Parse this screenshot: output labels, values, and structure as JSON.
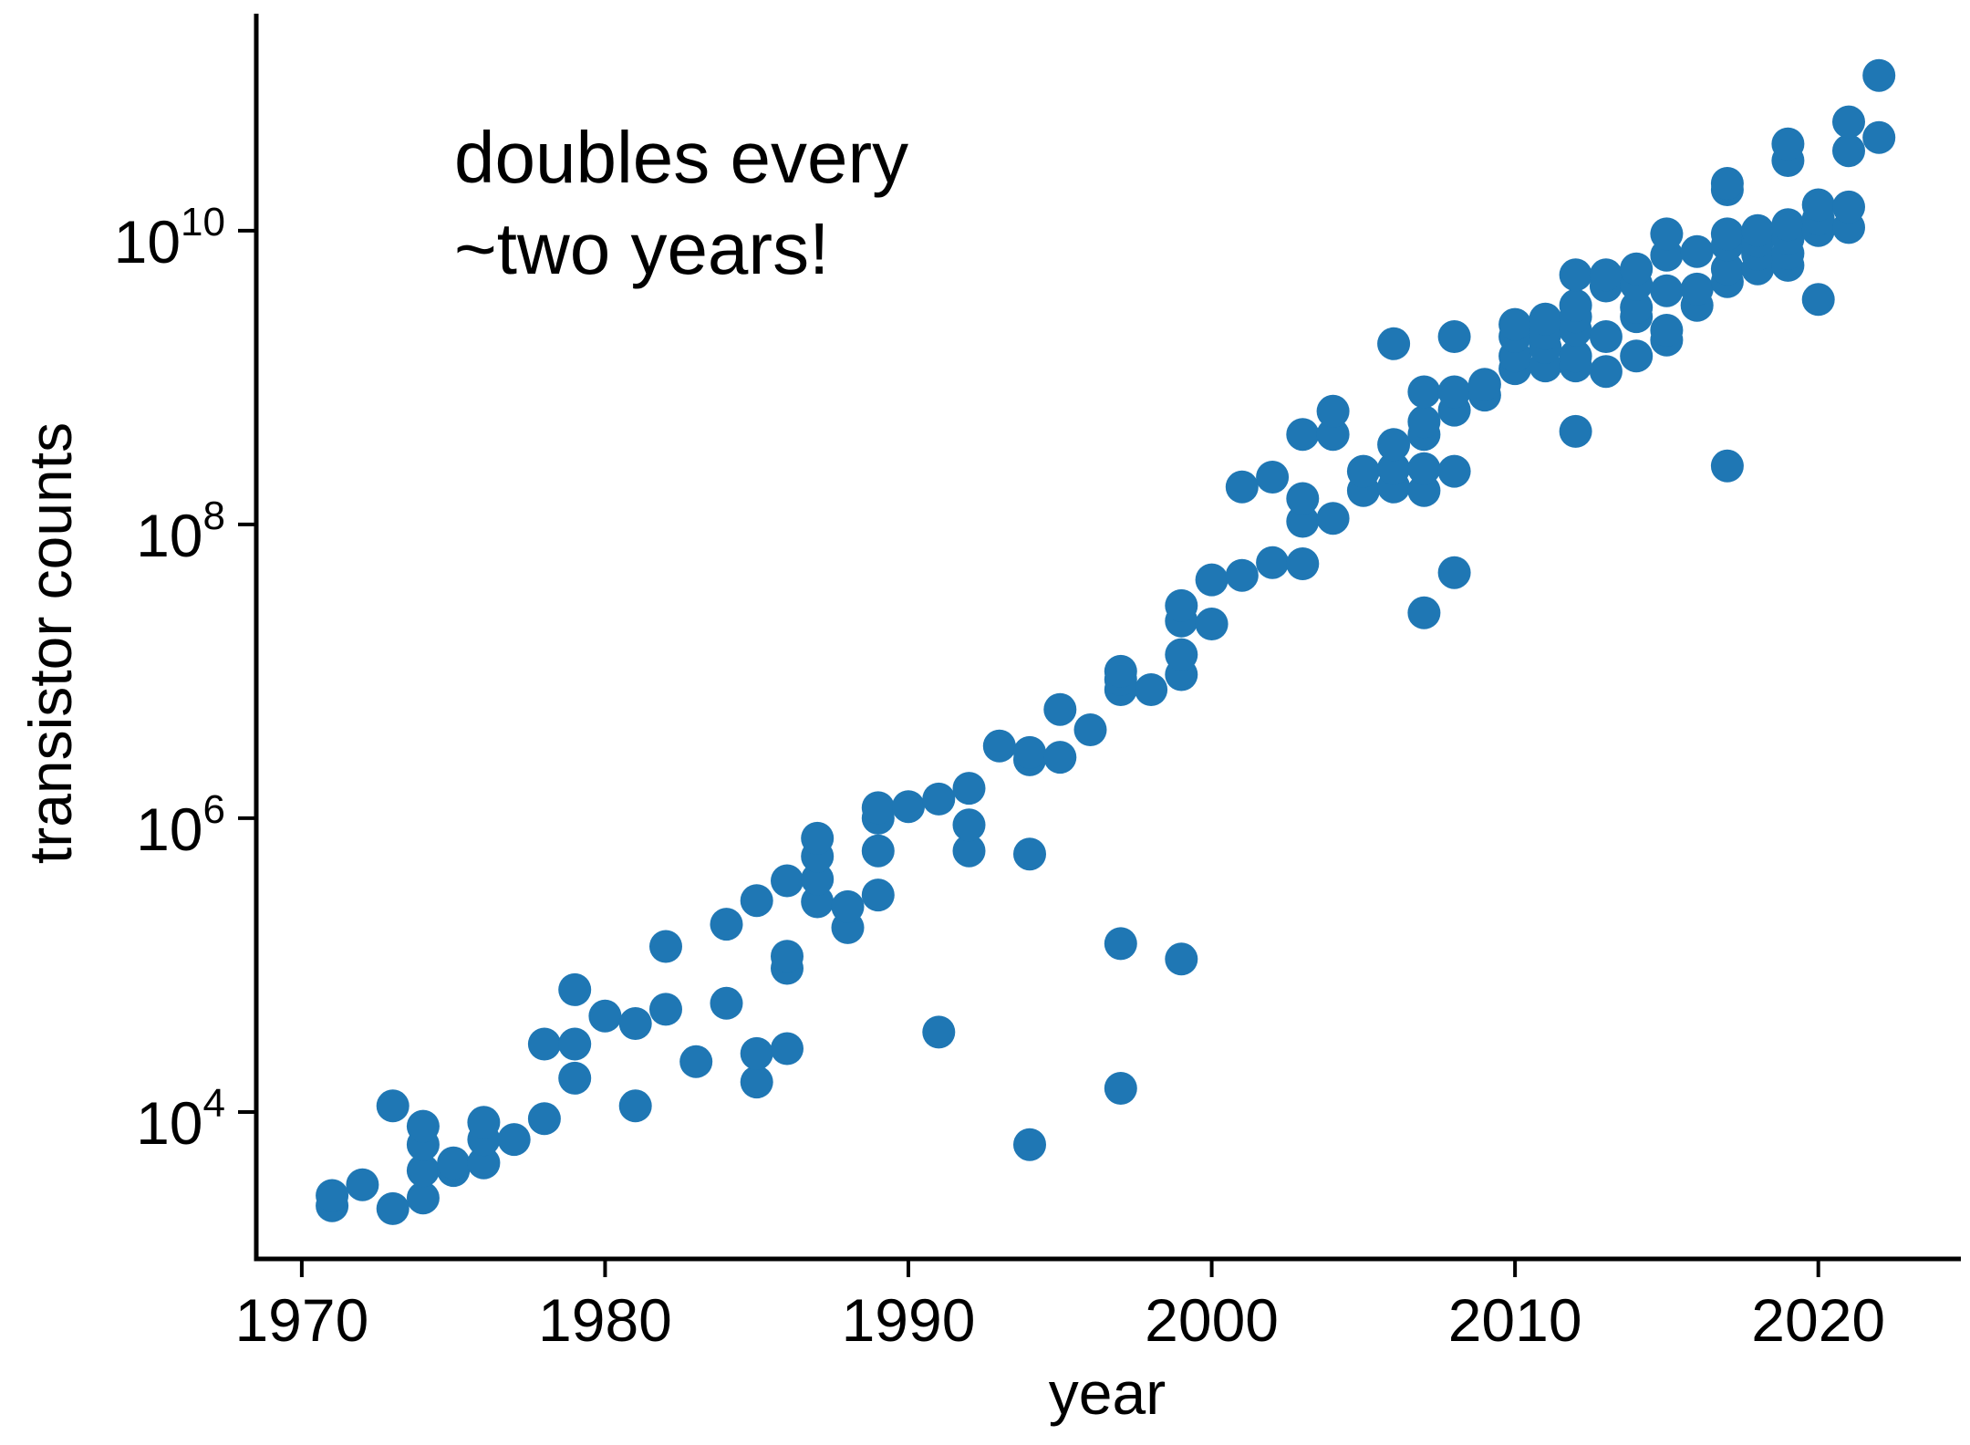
{
  "chart_data": {
    "type": "scatter",
    "title": "",
    "xlabel": "year",
    "ylabel": "transistor counts",
    "yscale": "log",
    "xlim": [
      1968.5,
      2024.7
    ],
    "ylim": [
      1000,
      300000000000
    ],
    "xticks": [
      1970,
      1980,
      1990,
      2000,
      2010,
      2020
    ],
    "xtick_labels": [
      "1970",
      "1980",
      "1990",
      "2000",
      "2010",
      "2020"
    ],
    "yticks": [
      10000,
      1000000,
      100000000,
      10000000000
    ],
    "ytick_labels": [
      {
        "base": "10",
        "exp": "4"
      },
      {
        "base": "10",
        "exp": "6"
      },
      {
        "base": "10",
        "exp": "8"
      },
      {
        "base": "10",
        "exp": "10"
      }
    ],
    "grid": false,
    "legend": "none",
    "point_color": "#1f77b4",
    "annotation": {
      "lines": [
        "doubles every",
        "~two years!"
      ],
      "placement": "top-left"
    },
    "series": [
      {
        "points": [
          [
            1971,
            2300
          ],
          [
            1971,
            2700
          ],
          [
            1972,
            3200
          ],
          [
            1973,
            2200
          ],
          [
            1973,
            11000
          ],
          [
            1974,
            2600
          ],
          [
            1974,
            4000
          ],
          [
            1974,
            6000
          ],
          [
            1974,
            8000
          ],
          [
            1975,
            4000
          ],
          [
            1975,
            4500
          ],
          [
            1976,
            4500
          ],
          [
            1976,
            6500
          ],
          [
            1976,
            8500
          ],
          [
            1977,
            6500
          ],
          [
            1978,
            9000
          ],
          [
            1978,
            29000
          ],
          [
            1979,
            17000
          ],
          [
            1979,
            29000
          ],
          [
            1979,
            68000
          ],
          [
            1980,
            45000
          ],
          [
            1981,
            11000
          ],
          [
            1981,
            40000
          ],
          [
            1982,
            50000
          ],
          [
            1982,
            134000
          ],
          [
            1983,
            22000
          ],
          [
            1984,
            55000
          ],
          [
            1984,
            190000
          ],
          [
            1985,
            16000
          ],
          [
            1985,
            25000
          ],
          [
            1985,
            275000
          ],
          [
            1986,
            27000
          ],
          [
            1986,
            95000
          ],
          [
            1986,
            115000
          ],
          [
            1986,
            375000
          ],
          [
            1987,
            270000
          ],
          [
            1987,
            385000
          ],
          [
            1987,
            550000
          ],
          [
            1987,
            730000
          ],
          [
            1988,
            180000
          ],
          [
            1988,
            250000
          ],
          [
            1989,
            300000
          ],
          [
            1989,
            600000
          ],
          [
            1989,
            1000000
          ],
          [
            1989,
            1180000
          ],
          [
            1990,
            1200000
          ],
          [
            1991,
            35000
          ],
          [
            1991,
            1350000
          ],
          [
            1992,
            600000
          ],
          [
            1992,
            900000
          ],
          [
            1992,
            1600000
          ],
          [
            1993,
            3100000
          ],
          [
            1994,
            6000
          ],
          [
            1994,
            570000
          ],
          [
            1994,
            2500000
          ],
          [
            1994,
            2800000
          ],
          [
            1995,
            2600000
          ],
          [
            1995,
            5500000
          ],
          [
            1996,
            4000000
          ],
          [
            1997,
            14500
          ],
          [
            1997,
            140000
          ],
          [
            1997,
            7500000
          ],
          [
            1997,
            8800000
          ],
          [
            1997,
            10000000
          ],
          [
            1998,
            7500000
          ],
          [
            1999,
            110000
          ],
          [
            1999,
            9500000
          ],
          [
            1999,
            13000000
          ],
          [
            1999,
            22000000
          ],
          [
            1999,
            28000000
          ],
          [
            2000,
            21000000
          ],
          [
            2000,
            42000000
          ],
          [
            2001,
            45000000
          ],
          [
            2001,
            180000000
          ],
          [
            2002,
            55000000
          ],
          [
            2002,
            210000000
          ],
          [
            2003,
            54000000
          ],
          [
            2003,
            105000000
          ],
          [
            2003,
            150000000
          ],
          [
            2003,
            410000000
          ],
          [
            2004,
            110000000
          ],
          [
            2004,
            410000000
          ],
          [
            2004,
            590000000
          ],
          [
            2005,
            170000000
          ],
          [
            2005,
            230000000
          ],
          [
            2006,
            180000000
          ],
          [
            2006,
            240000000
          ],
          [
            2006,
            350000000
          ],
          [
            2006,
            1700000000
          ],
          [
            2007,
            25000000
          ],
          [
            2007,
            170000000
          ],
          [
            2007,
            240000000
          ],
          [
            2007,
            410000000
          ],
          [
            2007,
            500000000
          ],
          [
            2007,
            800000000
          ],
          [
            2008,
            47000000
          ],
          [
            2008,
            230000000
          ],
          [
            2008,
            600000000
          ],
          [
            2008,
            800000000
          ],
          [
            2008,
            1900000000
          ],
          [
            2009,
            760000000
          ],
          [
            2009,
            900000000
          ],
          [
            2010,
            1150000000
          ],
          [
            2010,
            1400000000
          ],
          [
            2010,
            1900000000
          ],
          [
            2010,
            2300000000
          ],
          [
            2011,
            1200000000
          ],
          [
            2011,
            1600000000
          ],
          [
            2011,
            2000000000
          ],
          [
            2011,
            2500000000
          ],
          [
            2012,
            430000000
          ],
          [
            2012,
            1200000000
          ],
          [
            2012,
            1400000000
          ],
          [
            2012,
            2100000000
          ],
          [
            2012,
            2600000000
          ],
          [
            2012,
            3100000000
          ],
          [
            2012,
            5000000000
          ],
          [
            2013,
            1100000000
          ],
          [
            2013,
            1900000000
          ],
          [
            2013,
            4200000000
          ],
          [
            2013,
            5000000000
          ],
          [
            2014,
            1400000000
          ],
          [
            2014,
            2600000000
          ],
          [
            2014,
            3000000000
          ],
          [
            2014,
            4300000000
          ],
          [
            2014,
            5500000000
          ],
          [
            2015,
            1800000000
          ],
          [
            2015,
            2100000000
          ],
          [
            2015,
            3900000000
          ],
          [
            2015,
            6800000000
          ],
          [
            2015,
            9500000000
          ],
          [
            2016,
            3100000000
          ],
          [
            2016,
            4000000000
          ],
          [
            2016,
            7200000000
          ],
          [
            2017,
            250000000
          ],
          [
            2017,
            4500000000
          ],
          [
            2017,
            5500000000
          ],
          [
            2017,
            8000000000
          ],
          [
            2017,
            9500000000
          ],
          [
            2017,
            19000000000
          ],
          [
            2017,
            21000000000
          ],
          [
            2018,
            5500000000
          ],
          [
            2018,
            6900000000
          ],
          [
            2018,
            8500000000
          ],
          [
            2018,
            10000000000
          ],
          [
            2019,
            5800000000
          ],
          [
            2019,
            7000000000
          ],
          [
            2019,
            8800000000
          ],
          [
            2019,
            11000000000
          ],
          [
            2019,
            30000000000
          ],
          [
            2019,
            39000000000
          ],
          [
            2020,
            3400000000
          ],
          [
            2020,
            10000000000
          ],
          [
            2020,
            12000000000
          ],
          [
            2020,
            15000000000
          ],
          [
            2021,
            10500000000
          ],
          [
            2021,
            14500000000
          ],
          [
            2021,
            35000000000
          ],
          [
            2021,
            55000000000
          ],
          [
            2022,
            43000000000
          ],
          [
            2022,
            114000000000
          ]
        ]
      }
    ]
  }
}
